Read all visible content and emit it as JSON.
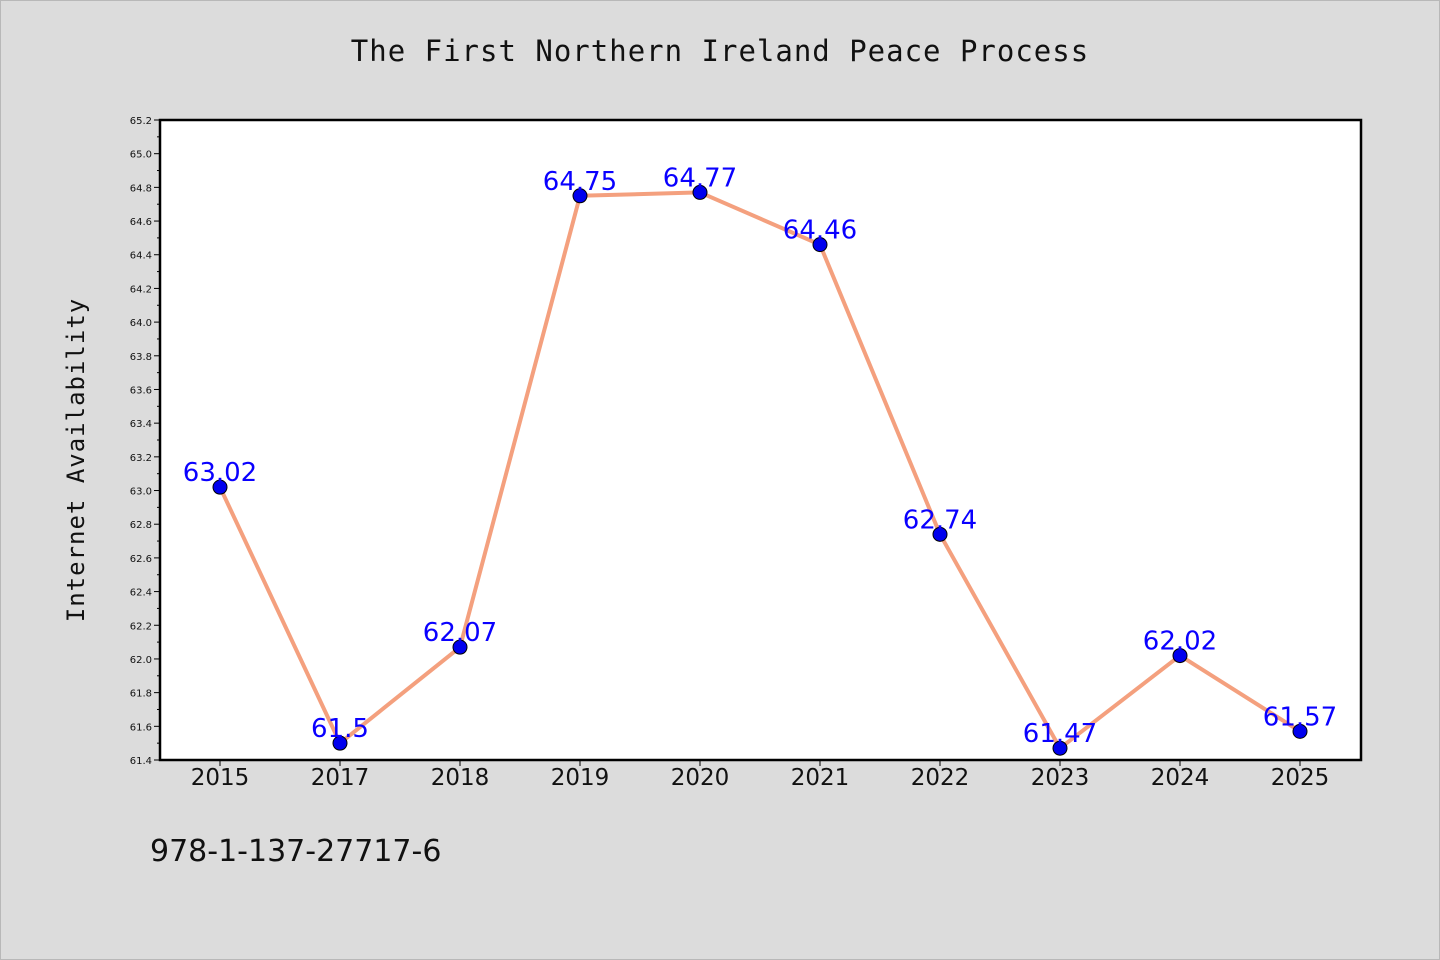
{
  "chart_data": {
    "type": "line",
    "title": "The First Northern Ireland Peace Process",
    "xlabel": "",
    "ylabel": "Internet Availability",
    "categories": [
      "2015",
      "2017",
      "2018",
      "2019",
      "2020",
      "2021",
      "2022",
      "2023",
      "2024",
      "2025"
    ],
    "series": [
      {
        "values": [
          63.02,
          61.5,
          62.07,
          64.75,
          64.77,
          64.46,
          62.74,
          61.47,
          62.02,
          61.57
        ],
        "labels": [
          "63.02",
          "61.5",
          "62.07",
          "64.75",
          "64.77",
          "64.46",
          "62.74",
          "61.47",
          "62.02",
          "61.57"
        ],
        "line_color": "#f4a07e",
        "marker_color": "#0000ee",
        "label_color": "#0a00ff"
      }
    ],
    "ylim": [
      61.4,
      65.2
    ],
    "yticks": [
      "61.4",
      "61.6",
      "61.8",
      "62.0",
      "62.2",
      "62.4",
      "62.6",
      "62.8",
      "63.0",
      "63.2",
      "63.4",
      "63.6",
      "63.8",
      "64.0",
      "64.2",
      "64.4",
      "64.6",
      "64.8",
      "65.0",
      "65.2"
    ],
    "grid": false,
    "legend": "none"
  },
  "footer": {
    "code": "978-1-137-27717-6"
  },
  "colors": {
    "background": "#dcdcdc",
    "plot_background": "#ffffff",
    "axis": "#000000"
  }
}
